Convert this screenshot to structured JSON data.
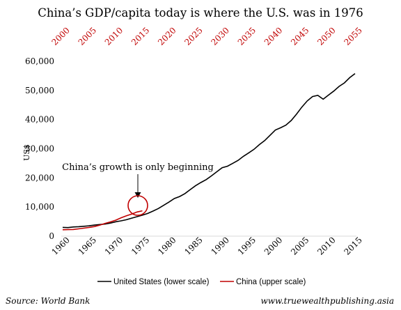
{
  "chart_data": {
    "type": "line",
    "title": "China’s GDP/capita today is where the U.S. was in 1976",
    "ylabel": "US$",
    "ylim": [
      0,
      60000
    ],
    "y_ticks": [
      0,
      10000,
      20000,
      30000,
      40000,
      50000,
      60000
    ],
    "y_tick_labels": [
      "0",
      "10,000",
      "20,000",
      "30,000",
      "40,000",
      "50,000",
      "60,000"
    ],
    "x_lower_range": [
      1960,
      2015
    ],
    "x_lower_ticks": [
      "1960",
      "1965",
      "1970",
      "1975",
      "1980",
      "1985",
      "1990",
      "1995",
      "2000",
      "2005",
      "2010",
      "2015"
    ],
    "x_upper_range": [
      2000,
      2055
    ],
    "x_upper_ticks": [
      "2000",
      "2005",
      "2010",
      "2015",
      "2020",
      "2025",
      "2030",
      "2035",
      "2040",
      "2045",
      "2050",
      "2055"
    ],
    "grid": false,
    "legend_position": "bottom",
    "annotation": "China’s growth is only beginning",
    "source": "Source: World Bank",
    "website": "www.truewealthpublishing.asia",
    "colors": {
      "us": "#000000",
      "china": "#c00000",
      "upper_axis": "#c00000"
    },
    "series": [
      {
        "name": "United States (lower scale)",
        "axis": "lower",
        "x": [
          1960,
          1961,
          1962,
          1963,
          1964,
          1965,
          1966,
          1967,
          1968,
          1969,
          1970,
          1971,
          1972,
          1973,
          1974,
          1975,
          1976,
          1977,
          1978,
          1979,
          1980,
          1981,
          1982,
          1983,
          1984,
          1985,
          1986,
          1987,
          1988,
          1989,
          1990,
          1991,
          1992,
          1993,
          1994,
          1995,
          1996,
          1997,
          1998,
          1999,
          2000,
          2001,
          2002,
          2003,
          2004,
          2005,
          2006,
          2007,
          2008,
          2009,
          2010,
          2011,
          2012,
          2013,
          2014,
          2015
        ],
        "values": [
          3000,
          2950,
          3150,
          3250,
          3400,
          3550,
          3800,
          4000,
          4150,
          4500,
          4950,
          5250,
          5650,
          6200,
          6700,
          7200,
          7800,
          8600,
          9500,
          10600,
          11700,
          12900,
          13600,
          14600,
          16000,
          17300,
          18400,
          19400,
          20700,
          22100,
          23500,
          24000,
          25000,
          26000,
          27400,
          28600,
          29800,
          31400,
          32800,
          34600,
          36400,
          37200,
          38100,
          39700,
          41900,
          44300,
          46400,
          47900,
          48300,
          47000,
          48400,
          49800,
          51400,
          52600,
          54400,
          55800
        ]
      },
      {
        "name": "China (upper scale)",
        "axis": "upper",
        "x": [
          2000,
          2001,
          2002,
          2003,
          2004,
          2005,
          2006,
          2007,
          2008,
          2009,
          2010,
          2011,
          2012,
          2013,
          2014,
          2015
        ],
        "values": [
          2200,
          2250,
          2300,
          2500,
          2750,
          3000,
          3300,
          3800,
          4400,
          4900,
          5500,
          6300,
          7000,
          7600,
          8300,
          8700
        ]
      }
    ]
  }
}
